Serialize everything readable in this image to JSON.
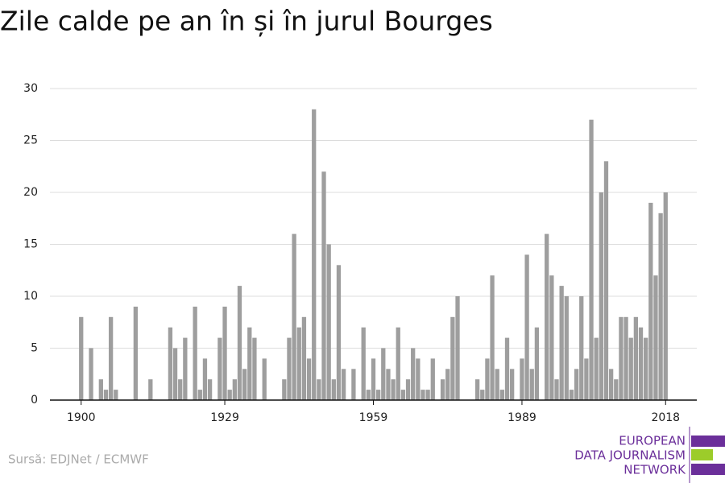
{
  "chart_data": {
    "type": "bar",
    "title": "Zile calde pe an în și în jurul Bourges",
    "source": "Sursă: EDJNet / ECMWF",
    "x": [
      1900,
      1901,
      1902,
      1903,
      1904,
      1905,
      1906,
      1907,
      1908,
      1909,
      1910,
      1911,
      1912,
      1913,
      1914,
      1915,
      1916,
      1917,
      1918,
      1919,
      1920,
      1921,
      1922,
      1923,
      1924,
      1925,
      1926,
      1927,
      1928,
      1929,
      1930,
      1931,
      1932,
      1933,
      1934,
      1935,
      1936,
      1937,
      1938,
      1939,
      1940,
      1941,
      1942,
      1943,
      1944,
      1945,
      1946,
      1947,
      1948,
      1949,
      1950,
      1951,
      1952,
      1953,
      1954,
      1955,
      1956,
      1957,
      1958,
      1959,
      1960,
      1961,
      1962,
      1963,
      1964,
      1965,
      1966,
      1967,
      1968,
      1969,
      1970,
      1971,
      1972,
      1973,
      1974,
      1975,
      1976,
      1977,
      1978,
      1979,
      1980,
      1981,
      1982,
      1983,
      1984,
      1985,
      1986,
      1987,
      1988,
      1989,
      1990,
      1991,
      1992,
      1993,
      1994,
      1995,
      1996,
      1997,
      1998,
      1999,
      2000,
      2001,
      2002,
      2003,
      2004,
      2005,
      2006,
      2007,
      2008,
      2009,
      2010,
      2011,
      2012,
      2013,
      2014,
      2015,
      2016,
      2017,
      2018
    ],
    "values": [
      8,
      0,
      5,
      0,
      2,
      1,
      8,
      1,
      0,
      0,
      0,
      9,
      0,
      0,
      2,
      0,
      0,
      0,
      7,
      5,
      2,
      6,
      0,
      9,
      1,
      4,
      2,
      0,
      6,
      9,
      1,
      2,
      11,
      3,
      7,
      6,
      0,
      4,
      0,
      0,
      0,
      2,
      6,
      16,
      7,
      8,
      4,
      28,
      2,
      22,
      15,
      2,
      13,
      3,
      0,
      3,
      0,
      7,
      1,
      4,
      1,
      5,
      3,
      2,
      7,
      1,
      2,
      5,
      4,
      1,
      1,
      4,
      0,
      2,
      3,
      8,
      10,
      0,
      0,
      0,
      2,
      1,
      4,
      12,
      3,
      1,
      6,
      3,
      0,
      4,
      14,
      3,
      7,
      0,
      16,
      12,
      2,
      11,
      10,
      1,
      3,
      10,
      4,
      27,
      6,
      20,
      23,
      3,
      2,
      8,
      8,
      6,
      8,
      7,
      6,
      19,
      12,
      18,
      20
    ],
    "color": "#9e9e9e",
    "xlim": [
      1893.7,
      2024.3
    ],
    "xticks": [
      1900,
      1929,
      1959,
      1989,
      2018
    ],
    "ylim": [
      0,
      30
    ],
    "yticks": [
      0,
      5,
      10,
      15,
      20,
      25,
      30
    ],
    "grid": true
  },
  "logo": {
    "lines": [
      "EUROPEAN",
      "DATA JOURNALISM",
      "NETWORK"
    ]
  }
}
